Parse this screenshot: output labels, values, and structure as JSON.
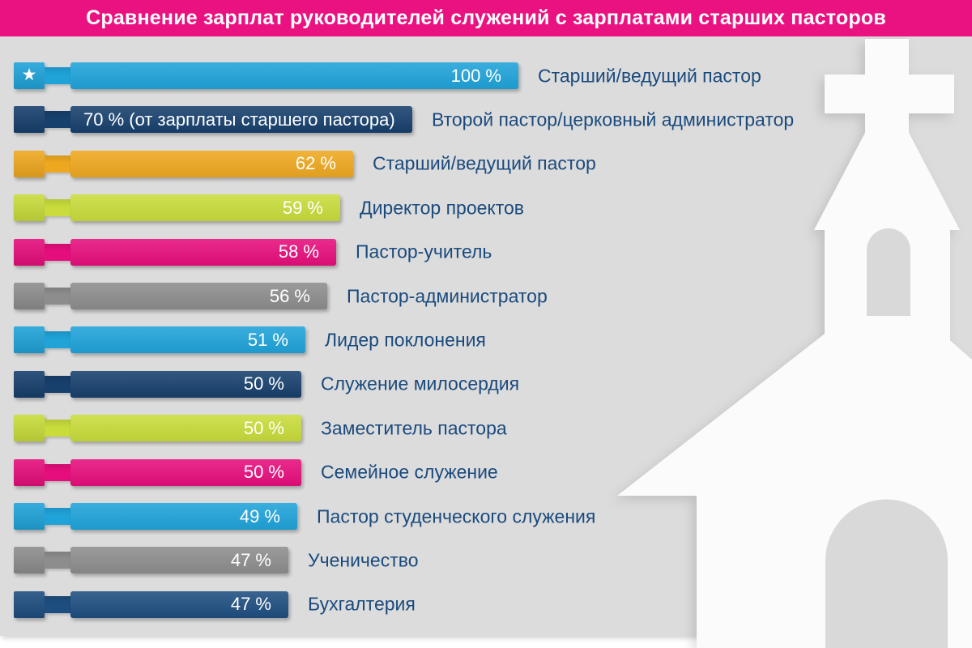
{
  "title": "Сравнение зарплат руководителей служений с зарплатами старших пасторов",
  "colors": {
    "title_bg": "#EA1280",
    "panel_bg": "#DCDCDC",
    "label_text": "#1A4A7D",
    "bar_value_text": "#FFFFFF",
    "church_fill": "#FBFBFB",
    "church_cutout": "#D9D9D9"
  },
  "background_art": "church-silhouette",
  "chart_data": {
    "type": "bar",
    "orientation": "horizontal",
    "title": "Сравнение зарплат руководителей служений с зарплатами старших пасторов",
    "unit": "%",
    "xlim": [
      0,
      100
    ],
    "grid": false,
    "legend": false,
    "categories": [
      "Старший/ведущий пастор",
      "Второй пастор/церковный администратор",
      "Старший/ведущий пастор",
      "Директор проектов",
      "Пастор-учитель",
      "Пастор-администратор",
      "Лидер поклонения",
      "Служение милосердия",
      "Заместитель пастора",
      "Семейное служение",
      "Пастор студенческого служения",
      "Ученичество",
      "Бухгалтерия"
    ],
    "values": [
      100,
      70,
      62,
      59,
      58,
      56,
      51,
      50,
      50,
      50,
      49,
      47,
      47
    ],
    "value_labels": [
      "100 %",
      "70 % (от зарплаты старшего пастора)",
      "62 %",
      "59 %",
      "58 %",
      "56 %",
      "51 %",
      "50 %",
      "50 %",
      "50 %",
      "49 %",
      "47 %",
      "47 %"
    ],
    "bar_colors": [
      "#1FA3D9",
      "#17406D",
      "#EEA81F",
      "#C9DC3B",
      "#E60E7C",
      "#8D8D8D",
      "#1FA3D9",
      "#17406D",
      "#C9DC3B",
      "#E60E7C",
      "#1FA3D9",
      "#8D8D8D",
      "#1E4E80"
    ],
    "starred": [
      true,
      false,
      false,
      false,
      false,
      false,
      false,
      false,
      false,
      false,
      false,
      false,
      false
    ],
    "star_icon": "★"
  }
}
